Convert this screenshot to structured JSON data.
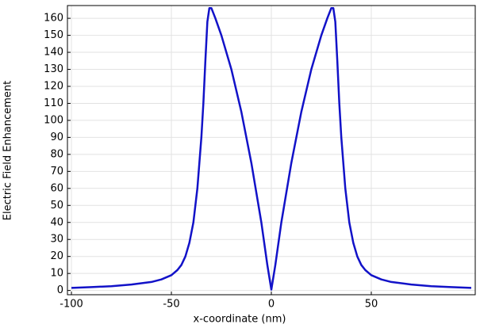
{
  "chart_data": {
    "type": "line",
    "x_label": "x-coordinate (nm)",
    "y_label": "Electric Field Enhancement",
    "x": [
      -100,
      -90,
      -80,
      -70,
      -60,
      -55,
      -50,
      -47,
      -45,
      -43,
      -41,
      -39,
      -37,
      -35,
      -34,
      -33,
      -32,
      -31,
      -30,
      -28,
      -25,
      -20,
      -15,
      -10,
      -5,
      -2,
      0,
      2,
      5,
      10,
      15,
      20,
      25,
      28,
      30,
      31,
      32,
      33,
      34,
      35,
      37,
      39,
      41,
      43,
      45,
      47,
      50,
      55,
      60,
      70,
      80,
      90,
      100
    ],
    "series": [
      {
        "name": "Electric Field Enhancement",
        "color": "#1212c8",
        "values": [
          1.5,
          2,
          2.5,
          3.5,
          5,
          6.5,
          9,
          12,
          15,
          20,
          28,
          40,
          60,
          90,
          110,
          135,
          158,
          166,
          166,
          160,
          150,
          130,
          105,
          75,
          40,
          15,
          0.5,
          15,
          40,
          75,
          105,
          130,
          150,
          160,
          166,
          166,
          158,
          135,
          110,
          90,
          60,
          40,
          28,
          20,
          15,
          12,
          9,
          6.5,
          5,
          3.5,
          2.5,
          2,
          1.5
        ]
      }
    ],
    "xlim": [
      -102,
      102
    ],
    "xticks": [
      -100,
      -50,
      0,
      50
    ],
    "ylim": [
      -2.5,
      167.5
    ],
    "yticks": [
      0,
      10,
      20,
      30,
      40,
      50,
      60,
      70,
      80,
      90,
      100,
      110,
      120,
      130,
      140,
      150,
      160
    ],
    "grid": true
  }
}
